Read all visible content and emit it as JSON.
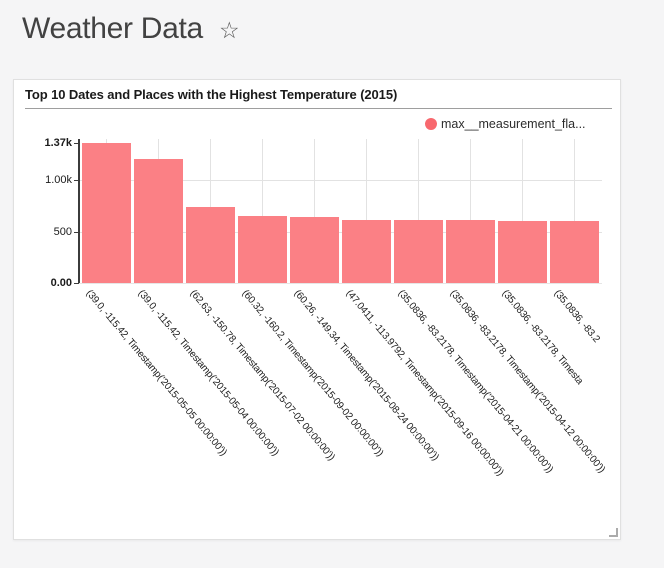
{
  "page": {
    "title": "Weather Data",
    "favorite_icon": "☆",
    "background_color": "#f5f5f6"
  },
  "chart_card": {
    "title": "Top 10 Dates and Places with the Highest Temperature (2015)",
    "legend": {
      "label": "max__measurement_fla...",
      "color": "#f8686e",
      "position": "top-right"
    }
  },
  "chart_data": {
    "type": "bar",
    "title": "Top 10 Dates and Places with the Highest Temperature (2015)",
    "categories": [
      "(39.0, -115.42, Timestamp('2015-05-05 00:00:00'))",
      "(39.0, -115.42, Timestamp('2015-05-04 00:00:00'))",
      "(62.63, -150.78, Timestamp('2015-07-02 00:00:00'))",
      "(60.32, -160.2, Timestamp('2015-09-02 00:00:00'))",
      "(60.26, -149.34, Timestamp('2015-08-24 00:00:00'))",
      "(47.0411, -113.9792, Timestamp('2015-09-16 00:00:00'))",
      "(35.0836, -83.2178, Timestamp('2015-04-21 00:00:00'))",
      "(35.0836, -83.2178, Timestamp('2015-04-12 00:00:00'))",
      "(35.0836, -83.2178, Timesta",
      "(35.0836, -83.2"
    ],
    "series": [
      {
        "name": "max__measurement_fla...",
        "color": "#fb8085",
        "values": [
          1370,
          1210,
          740,
          650,
          645,
          615,
          612,
          610,
          609,
          606
        ]
      }
    ],
    "xlabel": "",
    "ylabel": "",
    "ylim": [
      0,
      1370
    ],
    "y_ticks": [
      {
        "label": "0.00",
        "value": 0,
        "bold": true
      },
      {
        "label": "500",
        "value": 500,
        "bold": false
      },
      {
        "label": "1.00k",
        "value": 1000,
        "bold": false
      },
      {
        "label": "1.37k",
        "value": 1370,
        "bold": true
      }
    ],
    "h_gridline_values": [
      500,
      1000
    ],
    "grid": true,
    "x_label_rotation_deg": 50
  }
}
